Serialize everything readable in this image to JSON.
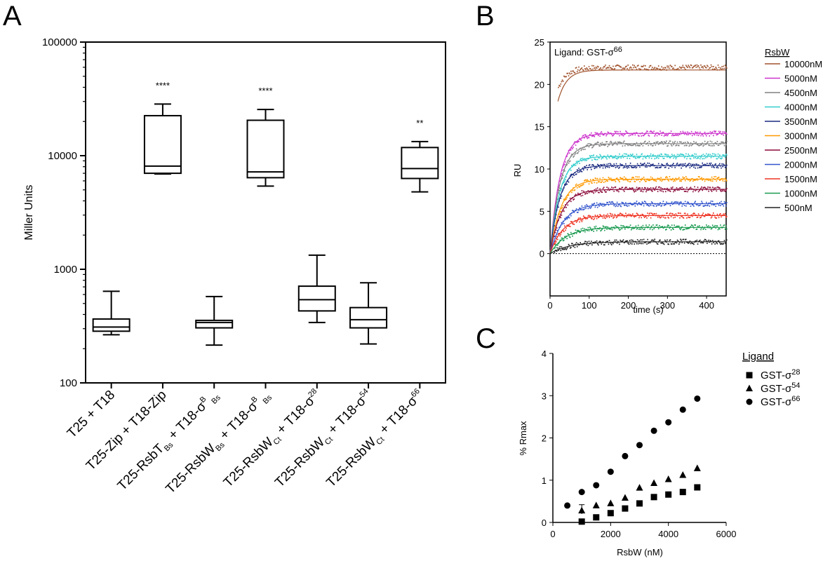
{
  "chart_data": [
    {
      "panel": "A",
      "type": "box",
      "ylabel": "Miller Units",
      "yscale": "log",
      "ylim": [
        100,
        100000
      ],
      "yticks": [
        "100",
        "1000",
        "10000",
        "100000"
      ],
      "categories": [
        {
          "base": "T25 + T18",
          "sub": "",
          "sup": "",
          "tail": ""
        },
        {
          "base": "T25-Zip + T18-Zip",
          "sub": "",
          "sup": "",
          "tail": ""
        },
        {
          "base": "T25-RsbT",
          "sub": "Bs",
          "mid": " + T18-σ",
          "sup": "B",
          "tail": " Bs"
        },
        {
          "base": "T25-RsbW",
          "sub": "Bs",
          "mid": " + T18-σ",
          "sup": "B",
          "tail": " Bs"
        },
        {
          "base": "T25-RsbW",
          "sub": "Ct",
          "mid": " + T18-σ",
          "sup": "28",
          "tail": ""
        },
        {
          "base": "T25-RsbW",
          "sub": "Ct",
          "mid": " + T18-σ",
          "sup": "54",
          "tail": ""
        },
        {
          "base": "T25-RsbW",
          "sub": "Ct",
          "mid": " + T18-σ",
          "sup": "66",
          "tail": ""
        }
      ],
      "boxes": [
        {
          "min": 265,
          "q1": 285,
          "median": 310,
          "q3": 365,
          "max": 640,
          "sig": ""
        },
        {
          "min": 6900,
          "q1": 7000,
          "median": 8100,
          "q3": 22500,
          "max": 28500,
          "sig": "****"
        },
        {
          "min": 215,
          "q1": 305,
          "median": 340,
          "q3": 355,
          "max": 575,
          "sig": ""
        },
        {
          "min": 5400,
          "q1": 6400,
          "median": 7200,
          "q3": 20500,
          "max": 25500,
          "sig": "****"
        },
        {
          "min": 340,
          "q1": 430,
          "median": 540,
          "q3": 710,
          "max": 1330,
          "sig": ""
        },
        {
          "min": 220,
          "q1": 305,
          "median": 360,
          "q3": 460,
          "max": 760,
          "sig": ""
        },
        {
          "min": 4800,
          "q1": 6300,
          "median": 7700,
          "q3": 11800,
          "max": 13300,
          "sig": "**"
        }
      ]
    },
    {
      "panel": "B",
      "type": "line",
      "xlabel": "time (s)",
      "ylabel": "RU",
      "xlim": [
        0,
        450
      ],
      "ylim": [
        -5,
        25
      ],
      "xticks": [
        0,
        100,
        200,
        300,
        400
      ],
      "yticks": [
        0,
        5,
        10,
        15,
        20,
        25
      ],
      "annotation_base": "Ligand: GST-σ",
      "annotation_sup": "66",
      "legend_title": "RsbW",
      "legend_position": "right",
      "series": [
        {
          "name": "10000nM",
          "color": "#a0522d",
          "plateau": 21.7,
          "k": 0.045,
          "start": 18.0
        },
        {
          "name": "5000nM",
          "color": "#cc33cc",
          "plateau": 14.2,
          "k": 0.04,
          "start": 0
        },
        {
          "name": "4500nM",
          "color": "#808080",
          "plateau": 13.0,
          "k": 0.04,
          "start": 0
        },
        {
          "name": "4000nM",
          "color": "#33cccc",
          "plateau": 11.5,
          "k": 0.04,
          "start": 0
        },
        {
          "name": "3500nM",
          "color": "#1a2a80",
          "plateau": 10.4,
          "k": 0.04,
          "start": 0
        },
        {
          "name": "3000nM",
          "color": "#ff9900",
          "plateau": 8.8,
          "k": 0.035,
          "start": 0
        },
        {
          "name": "2500nM",
          "color": "#8b0a3a",
          "plateau": 7.6,
          "k": 0.035,
          "start": 0
        },
        {
          "name": "2000nM",
          "color": "#3355cc",
          "plateau": 5.9,
          "k": 0.03,
          "start": 0
        },
        {
          "name": "1500nM",
          "color": "#ee3322",
          "plateau": 4.5,
          "k": 0.03,
          "start": 0
        },
        {
          "name": "1000nM",
          "color": "#1a9a50",
          "plateau": 3.1,
          "k": 0.025,
          "start": 0
        },
        {
          "name": "500nM",
          "color": "#222222",
          "plateau": 1.4,
          "k": 0.02,
          "start": 0
        }
      ]
    },
    {
      "panel": "C",
      "type": "scatter",
      "xlabel": "RsbW (nM)",
      "ylabel": "% Rmax",
      "xlim": [
        0,
        6000
      ],
      "ylim": [
        0,
        4
      ],
      "xticks": [
        0,
        2000,
        4000,
        6000
      ],
      "yticks": [
        0,
        1,
        2,
        3,
        4
      ],
      "legend_title": "Ligand",
      "legend_position": "right",
      "series": [
        {
          "name_base": "GST-σ",
          "name_sup": "28",
          "marker": "square",
          "x": [
            1000,
            1500,
            2000,
            2500,
            3000,
            3500,
            4000,
            4500,
            5000
          ],
          "y": [
            0.02,
            0.12,
            0.22,
            0.33,
            0.45,
            0.6,
            0.66,
            0.72,
            0.83
          ]
        },
        {
          "name_base": "GST-σ",
          "name_sup": "54",
          "marker": "triangle",
          "x": [
            1000,
            1500,
            2000,
            2500,
            3000,
            3500,
            4000,
            4500,
            5000
          ],
          "y": [
            0.28,
            0.4,
            0.45,
            0.58,
            0.82,
            0.93,
            1.02,
            1.12,
            1.28
          ]
        },
        {
          "name_base": "GST-σ",
          "name_sup": "66",
          "marker": "circle",
          "x": [
            500,
            1000,
            1500,
            2000,
            2500,
            3000,
            3500,
            4000,
            4500,
            5000
          ],
          "y": [
            0.4,
            0.72,
            0.88,
            1.2,
            1.57,
            1.83,
            2.17,
            2.37,
            2.67,
            2.93
          ]
        }
      ]
    }
  ]
}
